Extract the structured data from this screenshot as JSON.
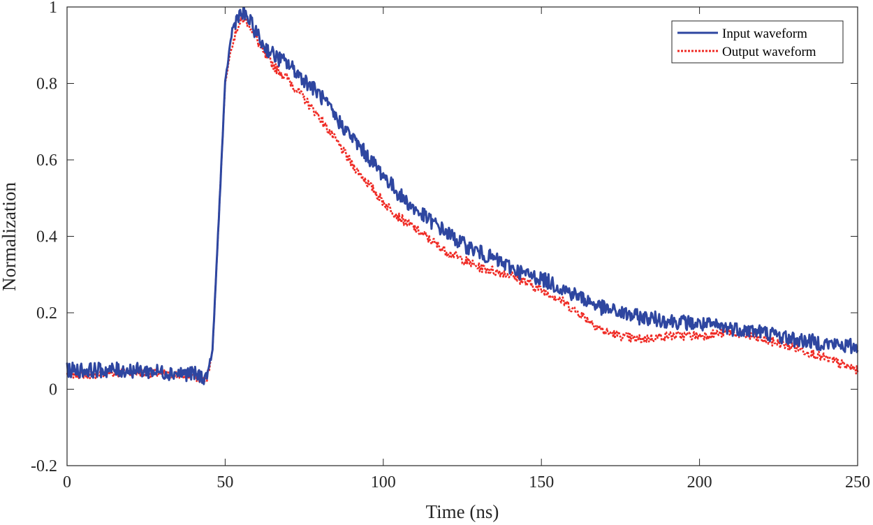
{
  "chart_data": {
    "type": "line",
    "title": "",
    "xlabel": "Time (ns)",
    "ylabel": "Normalization",
    "xlim": [
      0,
      250
    ],
    "ylim": [
      -0.2,
      1
    ],
    "xticks": [
      0,
      50,
      100,
      150,
      200,
      250
    ],
    "xtick_labels": [
      "0",
      "50",
      "100",
      "150",
      "200",
      "250"
    ],
    "yticks": [
      -0.2,
      0,
      0.2,
      0.4,
      0.6,
      0.8,
      1
    ],
    "ytick_labels": [
      "-0.2",
      "0",
      "0.2",
      "0.4",
      "0.6",
      "0.8",
      "1"
    ],
    "grid": false,
    "legend_position": "top-right",
    "series": [
      {
        "name": "Input waveform",
        "color": "#2e46a0",
        "style": "solid",
        "noise": 0.02,
        "x": [
          0,
          10,
          20,
          30,
          40,
          44,
          46,
          48,
          50,
          52,
          54,
          56,
          58,
          62,
          66,
          70,
          75,
          80,
          85,
          90,
          95,
          100,
          105,
          110,
          115,
          120,
          125,
          130,
          135,
          140,
          145,
          150,
          155,
          160,
          165,
          170,
          175,
          180,
          190,
          200,
          210,
          220,
          230,
          240,
          250
        ],
        "y": [
          0.05,
          0.05,
          0.05,
          0.045,
          0.04,
          0.03,
          0.1,
          0.45,
          0.8,
          0.93,
          0.98,
          0.98,
          0.96,
          0.9,
          0.87,
          0.85,
          0.81,
          0.77,
          0.71,
          0.66,
          0.61,
          0.56,
          0.51,
          0.47,
          0.44,
          0.41,
          0.38,
          0.36,
          0.34,
          0.32,
          0.3,
          0.29,
          0.27,
          0.25,
          0.23,
          0.21,
          0.2,
          0.19,
          0.18,
          0.17,
          0.16,
          0.15,
          0.13,
          0.12,
          0.11
        ]
      },
      {
        "name": "Output waveform",
        "color": "#ef2b25",
        "style": "dotted",
        "noise": 0.012,
        "x": [
          0,
          10,
          20,
          30,
          40,
          44,
          46,
          48,
          50,
          52,
          54,
          56,
          58,
          62,
          66,
          70,
          75,
          80,
          85,
          90,
          95,
          100,
          105,
          110,
          115,
          120,
          125,
          130,
          135,
          140,
          145,
          150,
          155,
          160,
          165,
          170,
          175,
          180,
          190,
          200,
          210,
          220,
          230,
          240,
          250
        ],
        "y": [
          0.04,
          0.04,
          0.045,
          0.04,
          0.035,
          0.02,
          0.1,
          0.45,
          0.8,
          0.9,
          0.95,
          0.97,
          0.95,
          0.88,
          0.84,
          0.81,
          0.76,
          0.71,
          0.65,
          0.59,
          0.54,
          0.49,
          0.45,
          0.42,
          0.39,
          0.36,
          0.34,
          0.32,
          0.31,
          0.3,
          0.28,
          0.26,
          0.24,
          0.21,
          0.18,
          0.15,
          0.14,
          0.13,
          0.14,
          0.14,
          0.15,
          0.13,
          0.11,
          0.08,
          0.05
        ]
      }
    ]
  }
}
